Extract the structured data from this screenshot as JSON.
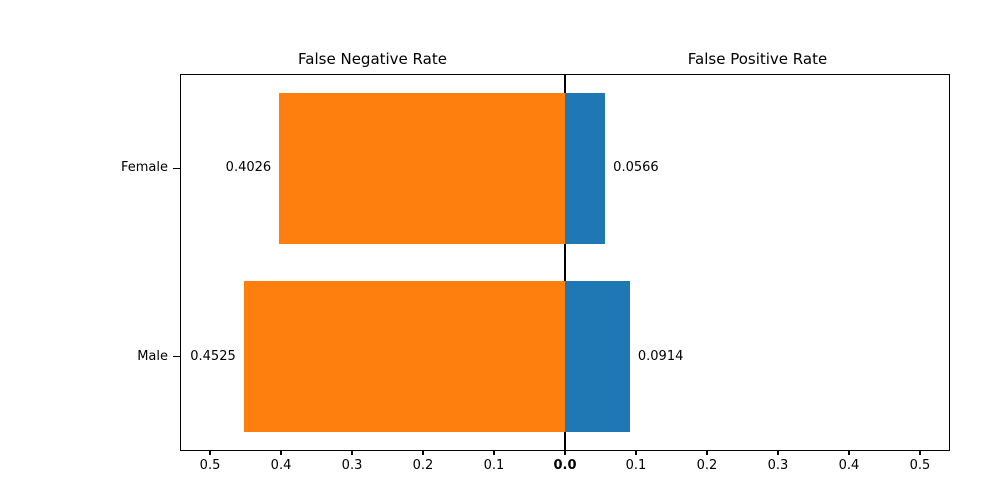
{
  "chart_data": {
    "type": "bar",
    "orientation": "horizontal-diverging",
    "titles": {
      "left": "False Negative Rate",
      "right": "False Positive Rate"
    },
    "categories": [
      "Female",
      "Male"
    ],
    "series": [
      {
        "name": "False Negative Rate",
        "side": "left",
        "color": "#ff7f0e",
        "values": [
          0.4026,
          0.4525
        ],
        "labels": [
          "0.4026",
          "0.4525"
        ]
      },
      {
        "name": "False Positive Rate",
        "side": "right",
        "color": "#1f77b4",
        "values": [
          0.0566,
          0.0914
        ],
        "labels": [
          "0.0566",
          "0.0914"
        ]
      }
    ],
    "x_ticks": {
      "left": [
        "0.5",
        "0.4",
        "0.3",
        "0.2",
        "0.1"
      ],
      "center": "0.0",
      "right": [
        "0.1",
        "0.2",
        "0.3",
        "0.4",
        "0.5"
      ]
    },
    "axis": {
      "x_half_range": 0.5423,
      "grid": false,
      "background": "#ffffff",
      "line_color": "#000000"
    }
  }
}
